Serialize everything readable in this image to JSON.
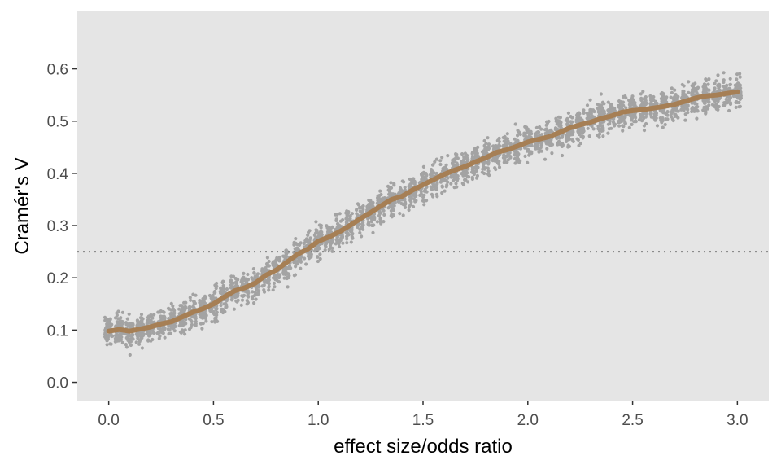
{
  "chart_data": {
    "type": "scatter",
    "title": "",
    "xlabel": "effect size/odds ratio",
    "ylabel": "Cramér's V",
    "xlim": [
      -0.15,
      3.15
    ],
    "ylim": [
      -0.035,
      0.71
    ],
    "x_ticks": [
      "0.0",
      "0.5",
      "1.0",
      "1.5",
      "2.0",
      "2.5",
      "3.0"
    ],
    "y_ticks": [
      "0.0",
      "0.1",
      "0.2",
      "0.3",
      "0.4",
      "0.5",
      "0.6"
    ],
    "grid": false,
    "legend": "none",
    "colors": {
      "panel_background": "#e5e5e5",
      "points": "#a3a3a3",
      "trend_line": "#a67f55",
      "reference_line": "#7f7f7f"
    },
    "reference_line": {
      "orientation": "horizontal",
      "y": 0.25,
      "style": "dotted"
    },
    "scatter_summary": {
      "x_step": 0.05,
      "x_range": [
        0.0,
        3.0
      ],
      "description_note": "vertical jittered clusters of gray points at each x step",
      "approx_spread_sd": 0.028
    },
    "trend_series": {
      "x": [
        0.0,
        0.05,
        0.1,
        0.15,
        0.2,
        0.25,
        0.3,
        0.35,
        0.4,
        0.45,
        0.5,
        0.55,
        0.6,
        0.65,
        0.7,
        0.75,
        0.8,
        0.85,
        0.9,
        0.95,
        1.0,
        1.05,
        1.1,
        1.15,
        1.2,
        1.25,
        1.3,
        1.35,
        1.4,
        1.45,
        1.5,
        1.55,
        1.6,
        1.65,
        1.7,
        1.75,
        1.8,
        1.85,
        1.9,
        1.95,
        2.0,
        2.05,
        2.1,
        2.15,
        2.2,
        2.25,
        2.3,
        2.35,
        2.4,
        2.45,
        2.5,
        2.55,
        2.6,
        2.65,
        2.7,
        2.75,
        2.8,
        2.85,
        2.9,
        2.95,
        3.0
      ],
      "y": [
        0.098,
        0.101,
        0.098,
        0.102,
        0.106,
        0.112,
        0.116,
        0.125,
        0.134,
        0.141,
        0.15,
        0.163,
        0.175,
        0.181,
        0.19,
        0.205,
        0.215,
        0.23,
        0.245,
        0.255,
        0.27,
        0.278,
        0.288,
        0.3,
        0.313,
        0.325,
        0.338,
        0.35,
        0.356,
        0.368,
        0.378,
        0.388,
        0.398,
        0.406,
        0.413,
        0.422,
        0.43,
        0.44,
        0.445,
        0.452,
        0.46,
        0.465,
        0.47,
        0.478,
        0.487,
        0.493,
        0.498,
        0.505,
        0.51,
        0.517,
        0.52,
        0.522,
        0.525,
        0.528,
        0.532,
        0.538,
        0.544,
        0.548,
        0.55,
        0.553,
        0.556
      ]
    }
  }
}
